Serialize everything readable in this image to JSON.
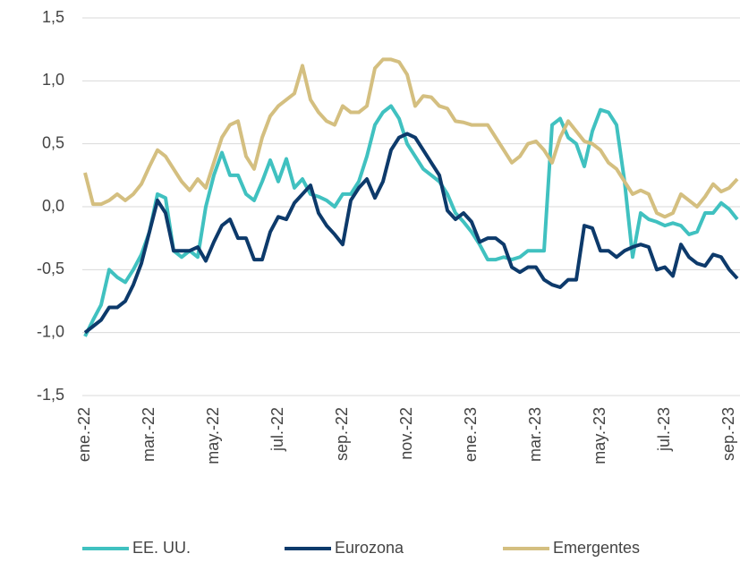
{
  "chart_data": {
    "type": "line",
    "categories": [
      "ene.-22",
      null,
      null,
      null,
      null,
      null,
      null,
      null,
      "mar.-22",
      null,
      null,
      null,
      null,
      null,
      null,
      null,
      "may.-22",
      null,
      null,
      null,
      null,
      null,
      null,
      null,
      "jul.-22",
      null,
      null,
      null,
      null,
      null,
      null,
      null,
      "sep.-22",
      null,
      null,
      null,
      null,
      null,
      null,
      null,
      "nov.-22",
      null,
      null,
      null,
      null,
      null,
      null,
      null,
      "ene.-23",
      null,
      null,
      null,
      null,
      null,
      null,
      null,
      "mar.-23",
      null,
      null,
      null,
      null,
      null,
      null,
      null,
      "may.-23",
      null,
      null,
      null,
      null,
      null,
      null,
      null,
      "jul.-23",
      null,
      null,
      null,
      null,
      null,
      null,
      null,
      "sep.-23",
      null
    ],
    "series": [
      {
        "name": "EE. UU.",
        "color": "#40c1c0",
        "values": [
          -1.03,
          -0.9,
          -0.78,
          -0.5,
          -0.56,
          -0.6,
          -0.5,
          -0.38,
          -0.2,
          0.1,
          0.07,
          -0.35,
          -0.4,
          -0.35,
          -0.4,
          0.0,
          0.25,
          0.43,
          0.25,
          0.25,
          0.1,
          0.05,
          0.2,
          0.37,
          0.2,
          0.38,
          0.15,
          0.22,
          0.1,
          0.08,
          0.05,
          0.0,
          0.1,
          0.1,
          0.2,
          0.4,
          0.65,
          0.75,
          0.8,
          0.7,
          0.5,
          0.4,
          0.3,
          0.25,
          0.2,
          0.1,
          -0.05,
          -0.12,
          -0.2,
          -0.3,
          -0.42,
          -0.42,
          -0.4,
          -0.42,
          -0.4,
          -0.35,
          -0.35,
          -0.35,
          0.65,
          0.7,
          0.55,
          0.5,
          0.32,
          0.6,
          0.77,
          0.75,
          0.65,
          0.2,
          -0.4,
          -0.05,
          -0.1,
          -0.12,
          -0.15,
          -0.13,
          -0.15,
          -0.22,
          -0.2,
          -0.05,
          -0.05,
          0.03,
          -0.02,
          -0.1
        ]
      },
      {
        "name": "Eurozona",
        "color": "#0d3a6b",
        "values": [
          -1.0,
          -0.95,
          -0.9,
          -0.8,
          -0.8,
          -0.75,
          -0.62,
          -0.45,
          -0.2,
          0.05,
          -0.05,
          -0.35,
          -0.35,
          -0.35,
          -0.32,
          -0.43,
          -0.28,
          -0.15,
          -0.1,
          -0.25,
          -0.25,
          -0.42,
          -0.42,
          -0.2,
          -0.08,
          -0.1,
          0.03,
          0.1,
          0.17,
          -0.05,
          -0.15,
          -0.22,
          -0.3,
          0.05,
          0.15,
          0.22,
          0.07,
          0.2,
          0.45,
          0.55,
          0.58,
          0.55,
          0.45,
          0.35,
          0.25,
          -0.03,
          -0.1,
          -0.05,
          -0.12,
          -0.28,
          -0.25,
          -0.25,
          -0.3,
          -0.48,
          -0.52,
          -0.48,
          -0.48,
          -0.58,
          -0.62,
          -0.64,
          -0.58,
          -0.58,
          -0.15,
          -0.17,
          -0.35,
          -0.35,
          -0.4,
          -0.35,
          -0.32,
          -0.3,
          -0.32,
          -0.5,
          -0.48,
          -0.55,
          -0.3,
          -0.4,
          -0.45,
          -0.47,
          -0.38,
          -0.4,
          -0.5,
          -0.57
        ]
      },
      {
        "name": "Emergentes",
        "color": "#d4bf80",
        "values": [
          0.27,
          0.02,
          0.02,
          0.05,
          0.1,
          0.05,
          0.1,
          0.18,
          0.32,
          0.45,
          0.4,
          0.3,
          0.2,
          0.13,
          0.22,
          0.15,
          0.35,
          0.55,
          0.65,
          0.68,
          0.4,
          0.3,
          0.55,
          0.72,
          0.8,
          0.85,
          0.9,
          1.12,
          0.85,
          0.75,
          0.68,
          0.65,
          0.8,
          0.75,
          0.75,
          0.8,
          1.1,
          1.17,
          1.17,
          1.15,
          1.05,
          0.8,
          0.88,
          0.87,
          0.8,
          0.78,
          0.68,
          0.67,
          0.65,
          0.65,
          0.65,
          0.55,
          0.45,
          0.35,
          0.4,
          0.5,
          0.52,
          0.45,
          0.35,
          0.55,
          0.68,
          0.6,
          0.52,
          0.5,
          0.45,
          0.35,
          0.3,
          0.2,
          0.1,
          0.13,
          0.1,
          -0.05,
          -0.08,
          -0.05,
          0.1,
          0.05,
          0.0,
          0.08,
          0.18,
          0.12,
          0.15,
          0.22
        ]
      }
    ],
    "ylim": [
      -1.5,
      1.5
    ],
    "yticks": [
      {
        "value": 1.5,
        "label": "1,5"
      },
      {
        "value": 1.0,
        "label": "1,0"
      },
      {
        "value": 0.5,
        "label": "0,5"
      },
      {
        "value": 0.0,
        "label": "0,0"
      },
      {
        "value": -0.5,
        "label": "-0,5"
      },
      {
        "value": -1.0,
        "label": "-1,0"
      },
      {
        "value": -1.5,
        "label": "-1,5"
      }
    ],
    "grid": true,
    "legend": "bottom"
  }
}
